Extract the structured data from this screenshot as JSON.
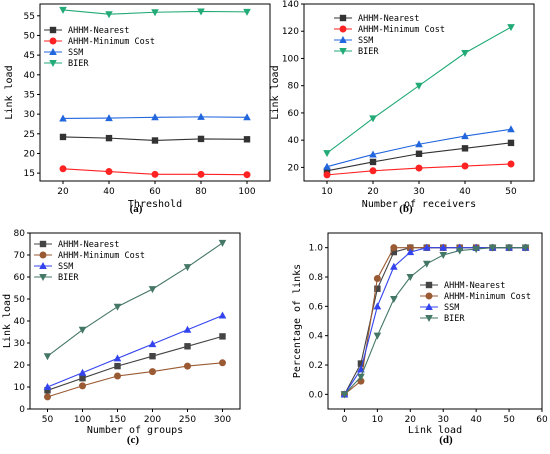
{
  "chart_data": [
    {
      "type": "line",
      "panel": "(a)",
      "xlabel": "Threshold",
      "ylabel": "Link load",
      "xlim": [
        10,
        110
      ],
      "ylim": [
        13,
        58
      ],
      "xticks": [
        20,
        40,
        60,
        80,
        100
      ],
      "yticks": [
        15,
        20,
        25,
        30,
        35,
        40,
        45,
        50,
        55
      ],
      "legend_position": "center-left",
      "series": [
        {
          "name": "AHHM-Nearest",
          "color": "#333333",
          "marker": "square",
          "x": [
            20,
            40,
            60,
            80,
            100
          ],
          "y": [
            24.2,
            23.9,
            23.3,
            23.7,
            23.6
          ]
        },
        {
          "name": "AHHM-Minimum Cost",
          "color": "#ff2222",
          "marker": "circle",
          "x": [
            20,
            40,
            60,
            80,
            100
          ],
          "y": [
            16.1,
            15.4,
            14.7,
            14.7,
            14.6
          ]
        },
        {
          "name": "SSM",
          "color": "#2266dd",
          "marker": "triangle-up",
          "x": [
            20,
            40,
            60,
            80,
            100
          ],
          "y": [
            28.9,
            29.0,
            29.2,
            29.3,
            29.2
          ]
        },
        {
          "name": "BIER",
          "color": "#22aa77",
          "marker": "triangle-down",
          "x": [
            20,
            40,
            60,
            80,
            100
          ],
          "y": [
            56.5,
            55.4,
            55.9,
            56.1,
            56.0
          ]
        }
      ]
    },
    {
      "type": "line",
      "panel": "(b)",
      "xlabel": "Number of receivers",
      "ylabel": "Link load",
      "xlim": [
        5,
        55
      ],
      "ylim": [
        10,
        140
      ],
      "xticks": [
        10,
        20,
        30,
        40,
        50
      ],
      "yticks": [
        20,
        40,
        60,
        80,
        100,
        120,
        140
      ],
      "legend_position": "top-left",
      "series": [
        {
          "name": "AHHM-Nearest",
          "color": "#333333",
          "marker": "square",
          "x": [
            10,
            20,
            30,
            40,
            50
          ],
          "y": [
            17.5,
            24,
            30,
            34,
            38
          ]
        },
        {
          "name": "AHHM-Minimum Cost",
          "color": "#ff2222",
          "marker": "circle",
          "x": [
            10,
            20,
            30,
            40,
            50
          ],
          "y": [
            14.5,
            17.5,
            19.5,
            21,
            22.5
          ]
        },
        {
          "name": "SSM",
          "color": "#2266dd",
          "marker": "triangle-up",
          "x": [
            10,
            20,
            30,
            40,
            50
          ],
          "y": [
            20.5,
            29.5,
            37,
            43,
            48
          ]
        },
        {
          "name": "BIER",
          "color": "#22aa77",
          "marker": "triangle-down",
          "x": [
            10,
            20,
            30,
            40,
            50
          ],
          "y": [
            30.5,
            56,
            80,
            104,
            123
          ]
        }
      ]
    },
    {
      "type": "line",
      "panel": "(c)",
      "xlabel": "Number of groups",
      "ylabel": "Link load",
      "xlim": [
        25,
        325
      ],
      "ylim": [
        0,
        80
      ],
      "xticks": [
        50,
        100,
        150,
        200,
        250,
        300
      ],
      "yticks": [
        0,
        10,
        20,
        30,
        40,
        50,
        60,
        70,
        80
      ],
      "legend_position": "top-left",
      "series": [
        {
          "name": "AHHM-Nearest",
          "color": "#444444",
          "marker": "square",
          "x": [
            50,
            100,
            150,
            200,
            250,
            300
          ],
          "y": [
            8.5,
            14,
            19.5,
            24,
            28.5,
            33
          ]
        },
        {
          "name": "AHHM-Minimum Cost",
          "color": "#9a5a33",
          "marker": "circle",
          "x": [
            50,
            100,
            150,
            200,
            250,
            300
          ],
          "y": [
            5.5,
            10.5,
            15,
            17,
            19.5,
            21
          ]
        },
        {
          "name": "SSM",
          "color": "#3344ee",
          "marker": "triangle-up",
          "x": [
            50,
            100,
            150,
            200,
            250,
            300
          ],
          "y": [
            10,
            16.5,
            23,
            29.5,
            36,
            42.5
          ]
        },
        {
          "name": "BIER",
          "color": "#447766",
          "marker": "triangle-down",
          "x": [
            50,
            100,
            150,
            200,
            250,
            300
          ],
          "y": [
            24,
            36,
            46.5,
            54.5,
            64.5,
            75.5
          ]
        }
      ]
    },
    {
      "type": "line",
      "panel": "(d)",
      "xlabel": "Link load",
      "ylabel": "Percentage of links",
      "xlim": [
        -5,
        60
      ],
      "ylim": [
        -0.1,
        1.1
      ],
      "xticks": [
        0,
        10,
        20,
        30,
        40,
        50,
        60
      ],
      "yticks": [
        0.0,
        0.2,
        0.4,
        0.6,
        0.8,
        1.0
      ],
      "ytick_labels": [
        "0.0",
        "0.2",
        "0.4",
        "0.6",
        "0.8",
        "1.0"
      ],
      "legend_position": "right",
      "series": [
        {
          "name": "AHHM-Nearest",
          "color": "#444444",
          "marker": "square",
          "x": [
            0,
            5,
            10,
            15,
            20,
            25,
            30,
            35,
            40,
            45,
            50,
            55
          ],
          "y": [
            0,
            0.21,
            0.72,
            0.97,
            1,
            1,
            1,
            1,
            1,
            1,
            1,
            1
          ]
        },
        {
          "name": "AHHM-Minimum Cost",
          "color": "#9a5a33",
          "marker": "circle",
          "x": [
            0,
            5,
            10,
            15,
            20,
            25,
            30,
            35,
            40,
            45,
            50,
            55
          ],
          "y": [
            0,
            0.09,
            0.79,
            1,
            1,
            1,
            1,
            1,
            1,
            1,
            1,
            1
          ]
        },
        {
          "name": "SSM",
          "color": "#3344ee",
          "marker": "triangle-up",
          "x": [
            0,
            5,
            10,
            15,
            20,
            25,
            30,
            35,
            40,
            45,
            50,
            55
          ],
          "y": [
            0,
            0.17,
            0.6,
            0.87,
            0.97,
            1,
            1,
            1,
            1,
            1,
            1,
            1
          ]
        },
        {
          "name": "BIER",
          "color": "#447766",
          "marker": "triangle-down",
          "x": [
            0,
            5,
            10,
            15,
            20,
            25,
            30,
            35,
            40,
            45,
            50,
            55
          ],
          "y": [
            0,
            0.12,
            0.4,
            0.65,
            0.8,
            0.89,
            0.95,
            0.98,
            0.99,
            1,
            1,
            1
          ]
        }
      ]
    }
  ]
}
